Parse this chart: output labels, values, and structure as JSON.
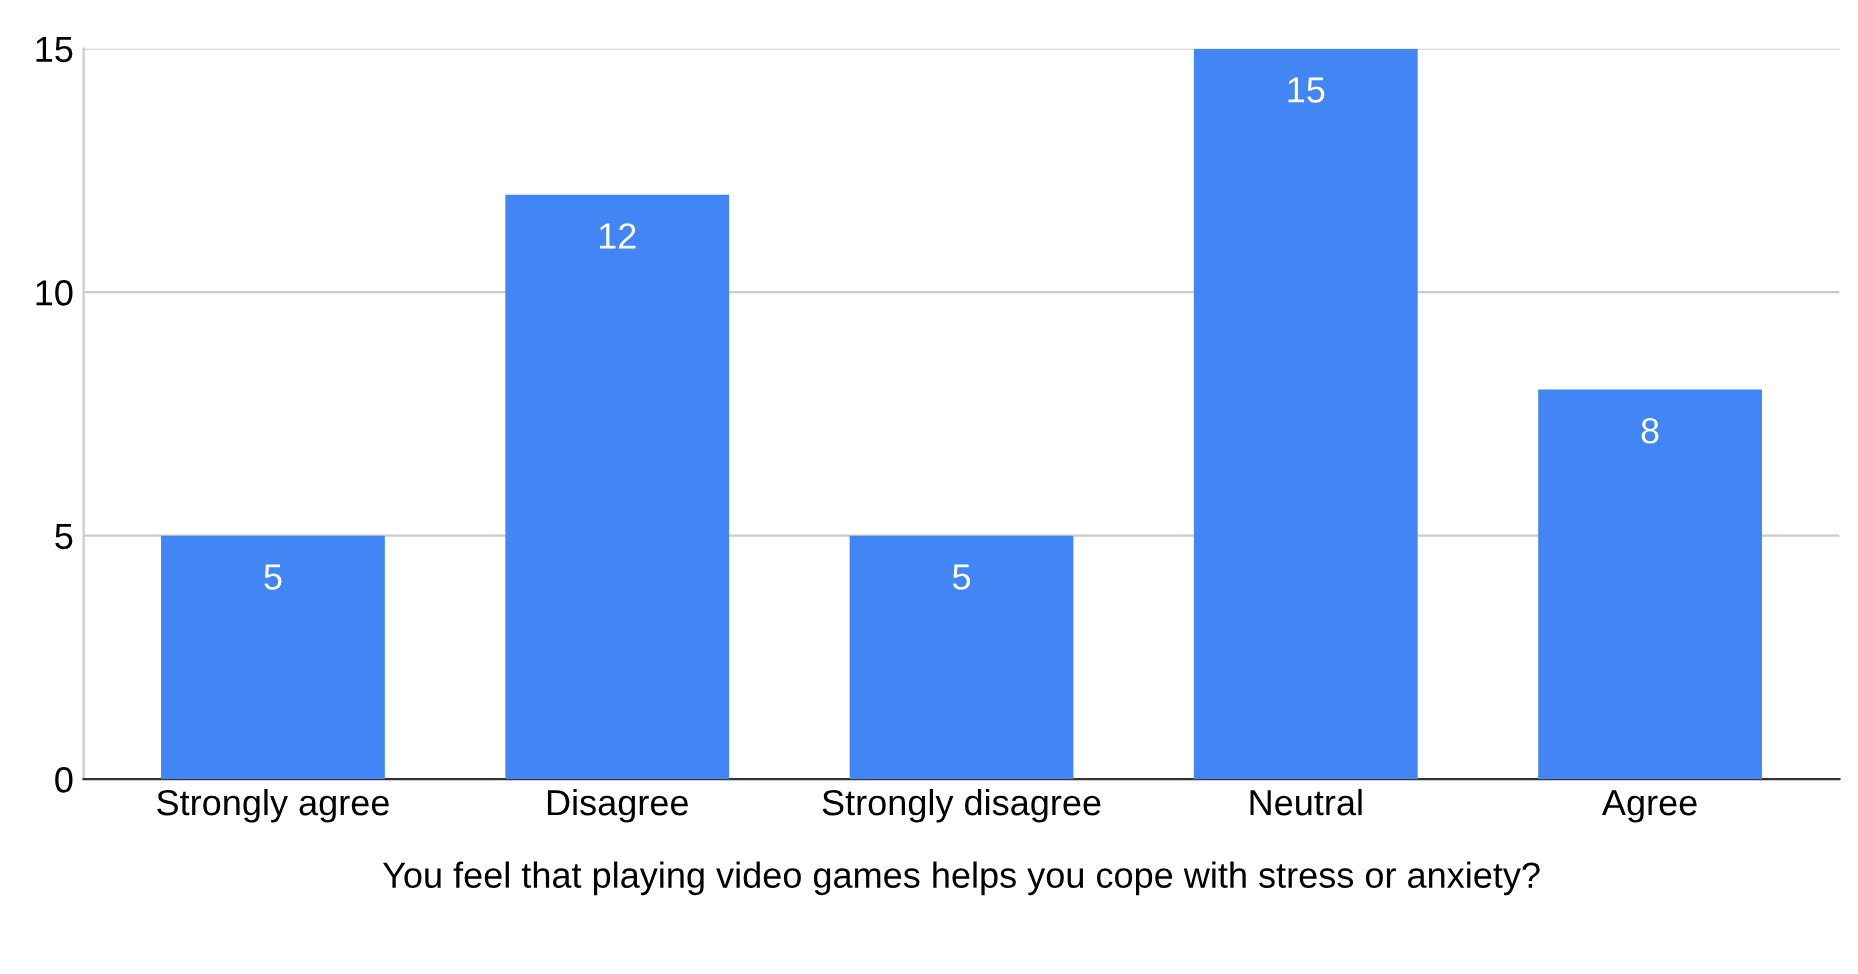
{
  "chart_data": {
    "type": "bar",
    "xlabel": "You feel that playing video games helps you cope with stress or anxiety?",
    "categories": [
      "Strongly agree",
      "Disagree",
      "Strongly disagree",
      "Neutral",
      "Agree"
    ],
    "values": [
      5,
      12,
      5,
      15,
      8
    ],
    "color": "#4285f4",
    "ylim": [
      0,
      15
    ],
    "yticks": [
      0,
      5,
      10,
      15
    ],
    "grid": "y",
    "data_labels": true,
    "legend": false
  }
}
